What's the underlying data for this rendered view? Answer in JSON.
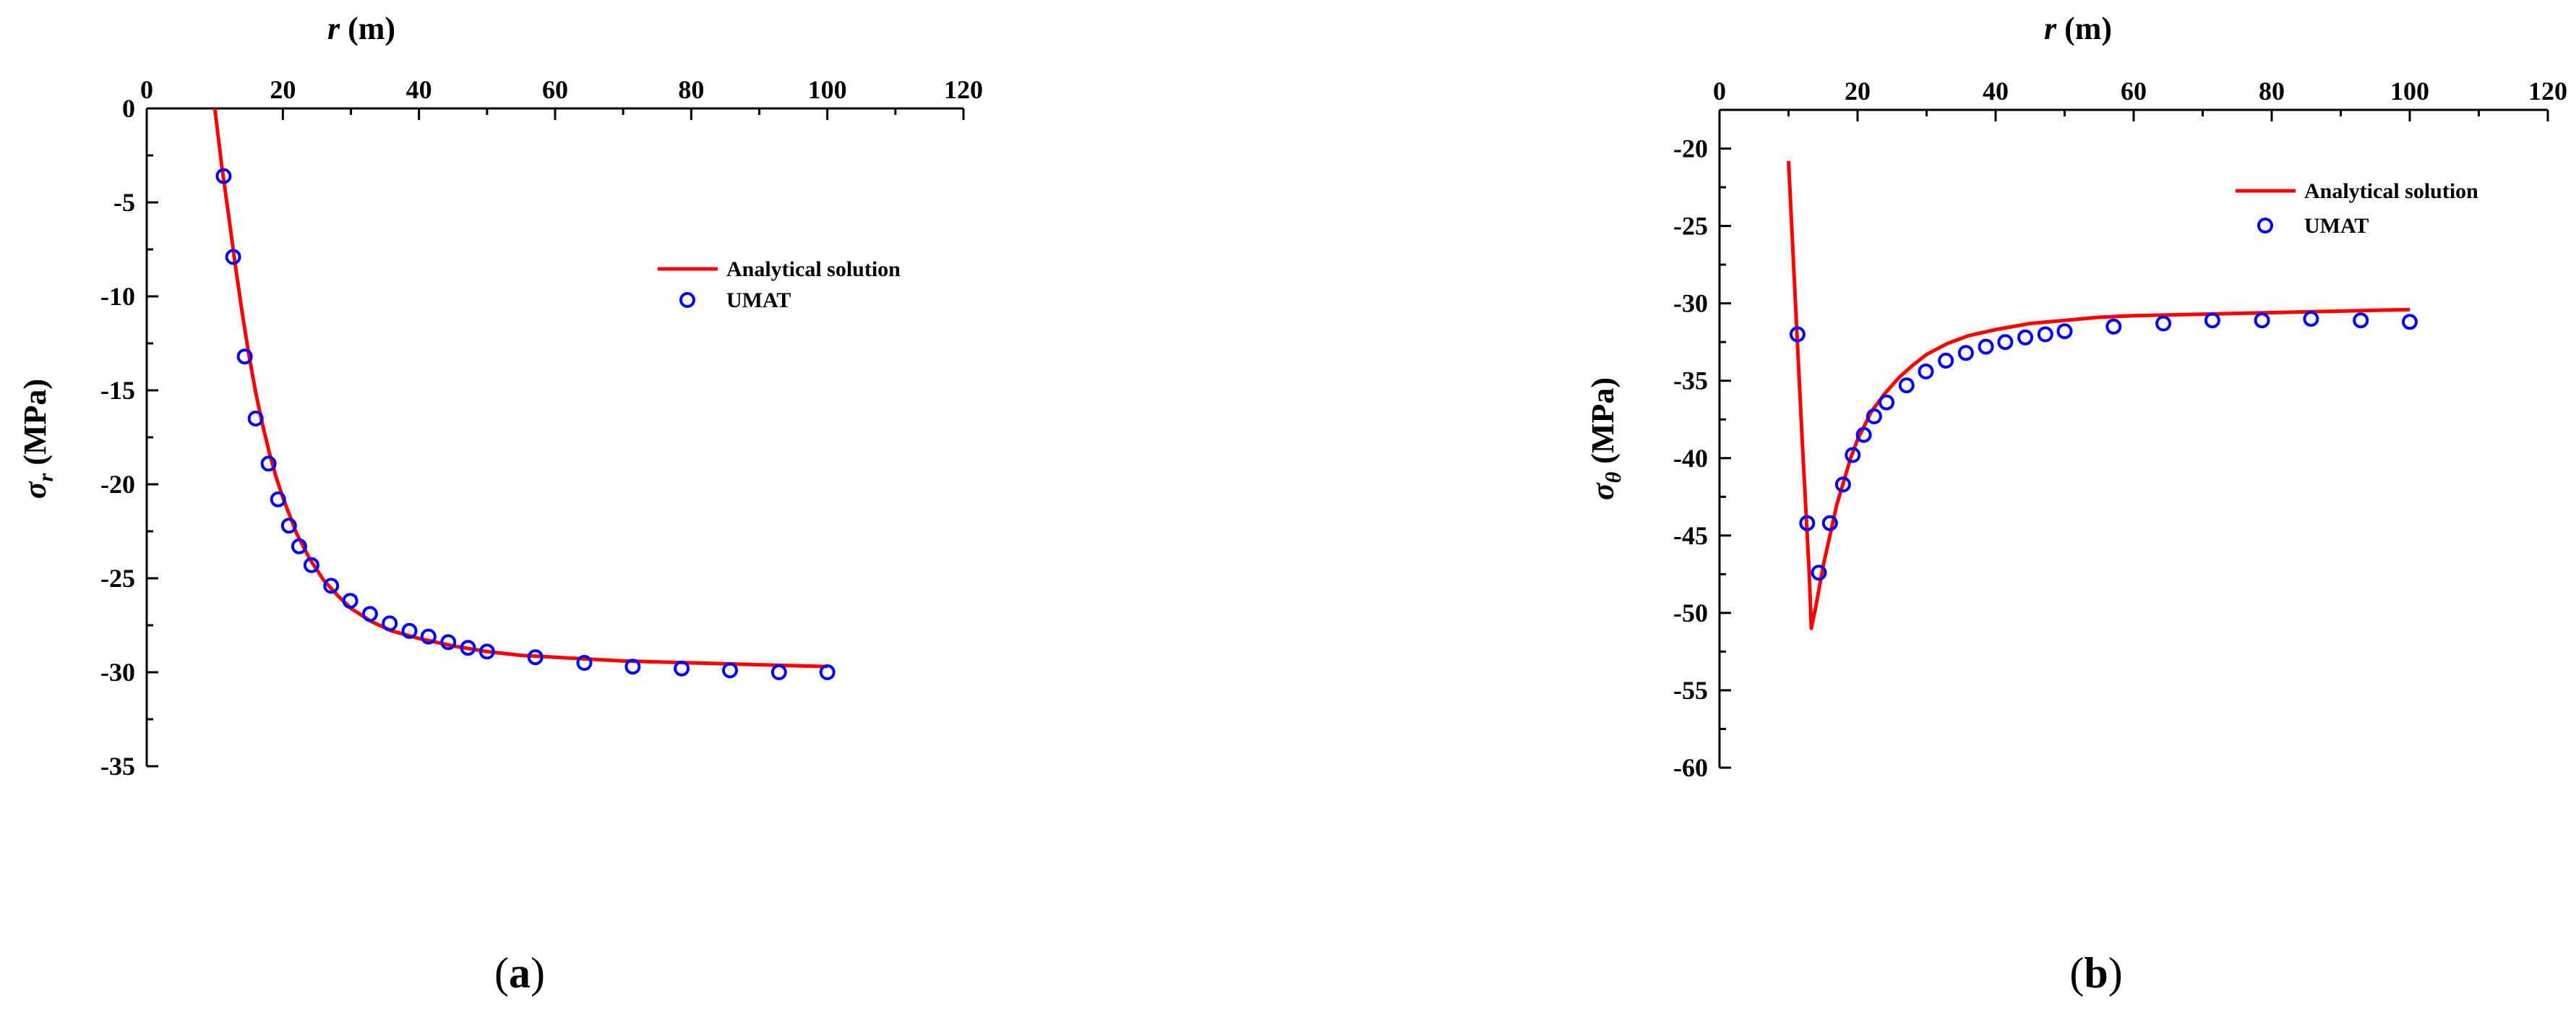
{
  "colors": {
    "line": "#ff0000",
    "marker": "#0000ff",
    "axis": "#000000"
  },
  "chart_data": [
    {
      "type": "line",
      "panel_label_open": "(",
      "panel_label_letter": "a",
      "panel_label_close": ")",
      "xlabel_var": "r",
      "xlabel_unit": " (m)",
      "ylabel_sym": "σ",
      "ylabel_sub": "r",
      "ylabel_unit": " (MPa)",
      "xlim": [
        0,
        120
      ],
      "ylim": [
        -35,
        0
      ],
      "xticks": [
        0,
        20,
        40,
        60,
        80,
        100,
        120
      ],
      "yticks": [
        0,
        -5,
        -10,
        -15,
        -20,
        -25,
        -30,
        -35
      ],
      "x_axis_position": "top",
      "y_axis_inverted": true,
      "grid": false,
      "legend_position": "right-upper",
      "series": [
        {
          "name": "Analytical solution",
          "kind": "line",
          "x": [
            10,
            11,
            12,
            13,
            14,
            15,
            16,
            17,
            18,
            19,
            20,
            22,
            24,
            26,
            28,
            30,
            33,
            36,
            40,
            45,
            50,
            55,
            60,
            70,
            80,
            90,
            100
          ],
          "y": [
            0,
            -3.0,
            -5.6,
            -8.3,
            -10.8,
            -13.1,
            -15.1,
            -16.8,
            -18.3,
            -19.6,
            -20.7,
            -22.6,
            -24.0,
            -25.1,
            -25.9,
            -26.6,
            -27.3,
            -27.8,
            -28.2,
            -28.6,
            -28.9,
            -29.1,
            -29.2,
            -29.4,
            -29.5,
            -29.6,
            -29.7
          ]
        },
        {
          "name": "UMAT",
          "kind": "scatter",
          "x": [
            11.3,
            12.7,
            14.4,
            16.0,
            17.9,
            19.3,
            20.9,
            22.4,
            24.2,
            27.1,
            29.9,
            32.8,
            35.7,
            38.6,
            41.4,
            44.3,
            47.2,
            50.0,
            57.1,
            64.3,
            71.4,
            78.6,
            85.7,
            92.9,
            100.0
          ],
          "y": [
            -3.6,
            -7.9,
            -13.2,
            -16.5,
            -18.9,
            -20.8,
            -22.2,
            -23.3,
            -24.3,
            -25.4,
            -26.2,
            -26.9,
            -27.4,
            -27.8,
            -28.1,
            -28.4,
            -28.7,
            -28.9,
            -29.2,
            -29.5,
            -29.7,
            -29.8,
            -29.9,
            -30.0,
            -30.0
          ]
        }
      ]
    },
    {
      "type": "line",
      "panel_label_open": "(",
      "panel_label_letter": "b",
      "panel_label_close": ")",
      "xlabel_var": "r",
      "xlabel_unit": " (m)",
      "ylabel_sym": "σ",
      "ylabel_sub": "θ",
      "ylabel_unit": " (MPa)",
      "xlim": [
        0,
        120
      ],
      "ylim": [
        -60,
        -17.5
      ],
      "xticks": [
        0,
        20,
        40,
        60,
        80,
        100,
        120
      ],
      "yticks": [
        -20,
        -25,
        -30,
        -35,
        -40,
        -45,
        -50,
        -55,
        -60
      ],
      "x_axis_position": "top",
      "y_axis_inverted": true,
      "grid": false,
      "legend_position": "right-upper",
      "series": [
        {
          "name": "Analytical solution",
          "kind": "line",
          "x": [
            10,
            11,
            12,
            13,
            13.3,
            14,
            15,
            16,
            17,
            18,
            19,
            20,
            22,
            24,
            26,
            28,
            30,
            33,
            36,
            40,
            45,
            50,
            55,
            60,
            70,
            80,
            90,
            100
          ],
          "y": [
            -20.8,
            -30.0,
            -39.0,
            -47.5,
            -51.0,
            -49.5,
            -47.0,
            -45.0,
            -43.0,
            -41.5,
            -40.0,
            -38.8,
            -37.0,
            -35.8,
            -34.8,
            -34.0,
            -33.3,
            -32.6,
            -32.1,
            -31.7,
            -31.3,
            -31.1,
            -30.9,
            -30.8,
            -30.7,
            -30.6,
            -30.5,
            -30.4
          ]
        },
        {
          "name": "UMAT",
          "kind": "scatter",
          "x": [
            11.3,
            12.7,
            14.4,
            16.0,
            17.9,
            19.3,
            20.9,
            22.4,
            24.2,
            27.1,
            29.9,
            32.8,
            35.7,
            38.6,
            41.4,
            44.3,
            47.2,
            50.0,
            57.1,
            64.3,
            71.4,
            78.6,
            85.7,
            92.9,
            100.0
          ],
          "y": [
            -32.0,
            -44.2,
            -47.4,
            -44.2,
            -41.7,
            -39.8,
            -38.5,
            -37.3,
            -36.4,
            -35.3,
            -34.4,
            -33.7,
            -33.2,
            -32.8,
            -32.5,
            -32.2,
            -32.0,
            -31.8,
            -31.5,
            -31.3,
            -31.1,
            -31.1,
            -31.0,
            -31.1,
            -31.2
          ]
        }
      ]
    }
  ]
}
